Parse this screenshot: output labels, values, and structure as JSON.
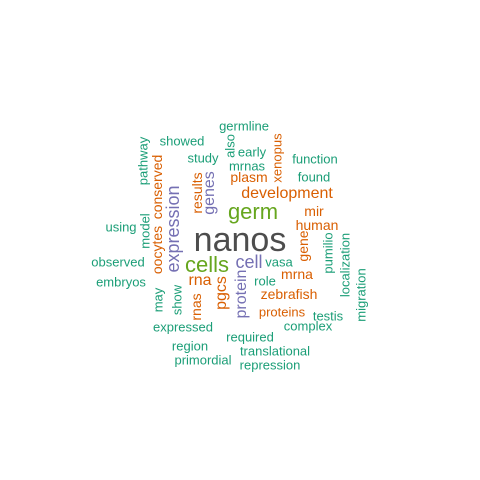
{
  "colors": {
    "dark_gray": "#4d4d4d",
    "green": "#66a61e",
    "orange": "#d95f02",
    "teal": "#1b9e77",
    "purple": "#7570b3"
  },
  "words": [
    {
      "id": "nanos",
      "text": "nanos",
      "color": "dark_gray",
      "size": "xl",
      "rotated": false
    },
    {
      "id": "germ",
      "text": "germ",
      "color": "green",
      "size": "l",
      "rotated": false
    },
    {
      "id": "cells",
      "text": "cells",
      "color": "green",
      "size": "l",
      "rotated": false
    },
    {
      "id": "expression",
      "text": "expression",
      "color": "purple",
      "size": "m",
      "rotated": true
    },
    {
      "id": "development",
      "text": "development",
      "color": "orange",
      "size": "ms",
      "rotated": false
    },
    {
      "id": "cell",
      "text": "cell",
      "color": "purple",
      "size": "m",
      "rotated": false
    },
    {
      "id": "protein",
      "text": "protein",
      "color": "purple",
      "size": "ms",
      "rotated": true
    },
    {
      "id": "genes",
      "text": "genes",
      "color": "purple",
      "size": "ms",
      "rotated": true
    },
    {
      "id": "rna",
      "text": "rna",
      "color": "orange",
      "size": "ms",
      "rotated": false
    },
    {
      "id": "pgcs",
      "text": "pgcs",
      "color": "orange",
      "size": "ms",
      "rotated": true
    },
    {
      "id": "zebrafish",
      "text": "zebrafish",
      "color": "orange",
      "size": "s",
      "rotated": false
    },
    {
      "id": "mrna",
      "text": "mrna",
      "color": "orange",
      "size": "s",
      "rotated": false
    },
    {
      "id": "human",
      "text": "human",
      "color": "orange",
      "size": "s",
      "rotated": false
    },
    {
      "id": "plasm",
      "text": "plasm",
      "color": "orange",
      "size": "s",
      "rotated": false
    },
    {
      "id": "results",
      "text": "results",
      "color": "orange",
      "size": "s",
      "rotated": true
    },
    {
      "id": "oocytes",
      "text": "oocytes",
      "color": "orange",
      "size": "s",
      "rotated": true
    },
    {
      "id": "conserved",
      "text": "conserved",
      "color": "orange",
      "size": "s",
      "rotated": true
    },
    {
      "id": "rnas",
      "text": "rnas",
      "color": "orange",
      "size": "s",
      "rotated": true
    },
    {
      "id": "gene",
      "text": "gene",
      "color": "orange",
      "size": "s",
      "rotated": true
    },
    {
      "id": "mir",
      "text": "mir",
      "color": "orange",
      "size": "s",
      "rotated": false
    },
    {
      "id": "proteins",
      "text": "proteins",
      "color": "orange",
      "size": "xs",
      "rotated": false
    },
    {
      "id": "xenopus",
      "text": "xenopus",
      "color": "orange",
      "size": "xs",
      "rotated": true
    },
    {
      "id": "germline",
      "text": "germline",
      "color": "teal",
      "size": "xs",
      "rotated": false
    },
    {
      "id": "also",
      "text": "also",
      "color": "teal",
      "size": "xs",
      "rotated": true
    },
    {
      "id": "showed",
      "text": "showed",
      "color": "teal",
      "size": "xs",
      "rotated": false
    },
    {
      "id": "early",
      "text": "early",
      "color": "teal",
      "size": "xs",
      "rotated": false
    },
    {
      "id": "study",
      "text": "study",
      "color": "teal",
      "size": "xs",
      "rotated": false
    },
    {
      "id": "mrnas",
      "text": "mrnas",
      "color": "teal",
      "size": "xs",
      "rotated": false
    },
    {
      "id": "function",
      "text": "function",
      "color": "teal",
      "size": "xs",
      "rotated": false
    },
    {
      "id": "pathway",
      "text": "pathway",
      "color": "teal",
      "size": "xs",
      "rotated": true
    },
    {
      "id": "found",
      "text": "found",
      "color": "teal",
      "size": "xs",
      "rotated": false
    },
    {
      "id": "using",
      "text": "using",
      "color": "teal",
      "size": "xs",
      "rotated": false
    },
    {
      "id": "model",
      "text": "model",
      "color": "teal",
      "size": "xs",
      "rotated": true
    },
    {
      "id": "observed",
      "text": "observed",
      "color": "teal",
      "size": "xs",
      "rotated": false
    },
    {
      "id": "embryos",
      "text": "embryos",
      "color": "teal",
      "size": "xs",
      "rotated": false
    },
    {
      "id": "may",
      "text": "may",
      "color": "teal",
      "size": "xs",
      "rotated": true
    },
    {
      "id": "show",
      "text": "show",
      "color": "teal",
      "size": "xs",
      "rotated": true
    },
    {
      "id": "vasa",
      "text": "vasa",
      "color": "teal",
      "size": "xs",
      "rotated": false
    },
    {
      "id": "role",
      "text": "role",
      "color": "teal",
      "size": "xs",
      "rotated": false
    },
    {
      "id": "pumilio",
      "text": "pumilio",
      "color": "teal",
      "size": "xs",
      "rotated": true
    },
    {
      "id": "localization",
      "text": "localization",
      "color": "teal",
      "size": "xs",
      "rotated": true
    },
    {
      "id": "migration",
      "text": "migration",
      "color": "teal",
      "size": "xs",
      "rotated": true
    },
    {
      "id": "testis",
      "text": "testis",
      "color": "teal",
      "size": "xs",
      "rotated": false
    },
    {
      "id": "complex",
      "text": "complex",
      "color": "teal",
      "size": "xs",
      "rotated": false
    },
    {
      "id": "expressed",
      "text": "expressed",
      "color": "teal",
      "size": "xs",
      "rotated": false
    },
    {
      "id": "required",
      "text": "required",
      "color": "teal",
      "size": "xs",
      "rotated": false
    },
    {
      "id": "region",
      "text": "region",
      "color": "teal",
      "size": "xs",
      "rotated": false
    },
    {
      "id": "translational",
      "text": "translational",
      "color": "teal",
      "size": "xs",
      "rotated": false
    },
    {
      "id": "primordial",
      "text": "primordial",
      "color": "teal",
      "size": "xs",
      "rotated": false
    },
    {
      "id": "repression",
      "text": "repression",
      "color": "teal",
      "size": "xs",
      "rotated": false
    }
  ]
}
